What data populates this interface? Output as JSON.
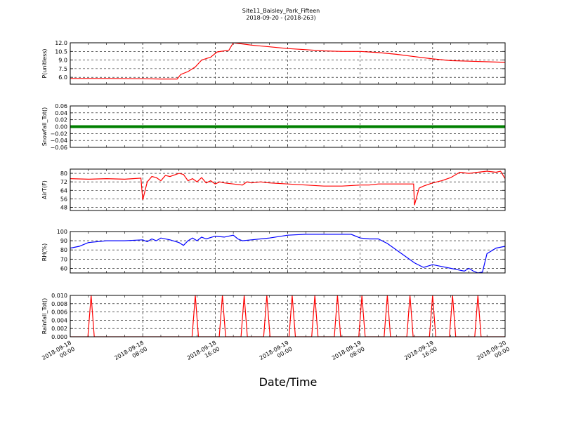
{
  "figure": {
    "title_line1": "Site11_Baisley_Park_Fifteen",
    "title_line2": "2018-09-20 - (2018-263)",
    "xlabel": "Date/Time"
  },
  "chart_data": {
    "type": "line",
    "x_axis": {
      "start": "2018-09-18 00:00",
      "end": "2018-09-20 00:00",
      "tick_labels": [
        [
          "2018-09-18",
          "00:00"
        ],
        [
          "2018-09-18",
          "08:00"
        ],
        [
          "2018-09-18",
          "16:00"
        ],
        [
          "2018-09-19",
          "00:00"
        ],
        [
          "2018-09-19",
          "08:00"
        ],
        [
          "2018-09-19",
          "16:00"
        ],
        [
          "2018-09-20",
          "00:00"
        ]
      ]
    },
    "grid": true,
    "panels": [
      {
        "ylabel": "P(unitless)",
        "ylim": [
          4.8,
          12.0
        ],
        "yticks": [
          "6.0",
          "7.5",
          "9.0",
          "10.5",
          "12.0"
        ],
        "color": "#ff0000",
        "style": "line",
        "points": [
          [
            0,
            5.8
          ],
          [
            4,
            5.8
          ],
          [
            8,
            5.75
          ],
          [
            10,
            5.7
          ],
          [
            11.8,
            5.7
          ],
          [
            12.2,
            6.5
          ],
          [
            13,
            7.0
          ],
          [
            13.8,
            7.8
          ],
          [
            14.5,
            9.0
          ],
          [
            15.5,
            9.5
          ],
          [
            16.2,
            10.4
          ],
          [
            17,
            10.6
          ],
          [
            17.5,
            10.7
          ],
          [
            18,
            12.0
          ],
          [
            19,
            11.8
          ],
          [
            20,
            11.6
          ],
          [
            22,
            11.3
          ],
          [
            24,
            11.0
          ],
          [
            26,
            10.8
          ],
          [
            28,
            10.6
          ],
          [
            30,
            10.5
          ],
          [
            32,
            10.5
          ],
          [
            34,
            10.3
          ],
          [
            36,
            10.0
          ],
          [
            38,
            9.6
          ],
          [
            40,
            9.2
          ],
          [
            42,
            8.9
          ],
          [
            44,
            8.8
          ],
          [
            46,
            8.7
          ],
          [
            48,
            8.6
          ]
        ]
      },
      {
        "ylabel": "Snowfall_Tot()",
        "ylim": [
          -0.06,
          0.06
        ],
        "yticks": [
          "−0.06",
          "−0.04",
          "−0.02",
          "0.00",
          "0.02",
          "0.04",
          "0.06"
        ],
        "color": "#008000",
        "style": "markers",
        "points": [
          [
            0,
            0
          ],
          [
            48,
            0
          ]
        ]
      },
      {
        "ylabel": "AirT(F)",
        "ylim": [
          45,
          84
        ],
        "yticks": [
          "48",
          "56",
          "64",
          "72",
          "80"
        ],
        "color": "#ff0000",
        "style": "line",
        "points": [
          [
            0,
            75
          ],
          [
            2,
            74.5
          ],
          [
            4,
            75
          ],
          [
            6,
            74.5
          ],
          [
            7.8,
            75.5
          ],
          [
            8,
            55
          ],
          [
            8.5,
            72
          ],
          [
            9,
            77
          ],
          [
            9.5,
            76
          ],
          [
            10,
            73
          ],
          [
            10.5,
            78
          ],
          [
            11,
            77
          ],
          [
            12,
            80
          ],
          [
            12.5,
            79
          ],
          [
            13,
            73
          ],
          [
            13.5,
            75
          ],
          [
            14,
            72
          ],
          [
            14.5,
            76
          ],
          [
            15,
            71
          ],
          [
            15.5,
            73
          ],
          [
            16,
            70
          ],
          [
            16.5,
            72
          ],
          [
            17,
            71
          ],
          [
            18,
            70
          ],
          [
            19,
            69
          ],
          [
            19.5,
            72
          ],
          [
            20,
            71
          ],
          [
            21,
            72
          ],
          [
            22,
            71
          ],
          [
            24,
            70
          ],
          [
            26,
            69
          ],
          [
            28,
            68
          ],
          [
            30,
            68
          ],
          [
            32,
            69
          ],
          [
            33,
            69
          ],
          [
            34,
            70
          ],
          [
            37.9,
            70
          ],
          [
            38,
            50
          ],
          [
            38.5,
            66
          ],
          [
            39,
            68
          ],
          [
            40,
            71
          ],
          [
            41,
            73
          ],
          [
            42,
            76
          ],
          [
            43,
            81
          ],
          [
            44,
            80
          ],
          [
            45,
            81
          ],
          [
            46,
            82
          ],
          [
            47,
            81
          ],
          [
            47.5,
            82
          ],
          [
            48,
            75
          ]
        ]
      },
      {
        "ylabel": "RH(%)",
        "ylim": [
          55,
          100
        ],
        "yticks": [
          "60",
          "70",
          "80",
          "90",
          "100"
        ],
        "color": "#0000ff",
        "style": "line",
        "points": [
          [
            0,
            82
          ],
          [
            1,
            84
          ],
          [
            2,
            88
          ],
          [
            4,
            90
          ],
          [
            6,
            90
          ],
          [
            8,
            91
          ],
          [
            8.5,
            89
          ],
          [
            9,
            92
          ],
          [
            9.5,
            90
          ],
          [
            10,
            93
          ],
          [
            11,
            91
          ],
          [
            12,
            88
          ],
          [
            12.5,
            85
          ],
          [
            13,
            90
          ],
          [
            13.5,
            93
          ],
          [
            14,
            90
          ],
          [
            14.5,
            94
          ],
          [
            15,
            92
          ],
          [
            16,
            95
          ],
          [
            17,
            94
          ],
          [
            18,
            96
          ],
          [
            18.5,
            92
          ],
          [
            19,
            90
          ],
          [
            20,
            91
          ],
          [
            22,
            93
          ],
          [
            24,
            96
          ],
          [
            26,
            97
          ],
          [
            28,
            97
          ],
          [
            30,
            97
          ],
          [
            31,
            97
          ],
          [
            32,
            93
          ],
          [
            33,
            92
          ],
          [
            34,
            92
          ],
          [
            35,
            87
          ],
          [
            36,
            80
          ],
          [
            37,
            73
          ],
          [
            38,
            66
          ],
          [
            39,
            61
          ],
          [
            40,
            64
          ],
          [
            41,
            62
          ],
          [
            42,
            60
          ],
          [
            43,
            58
          ],
          [
            43.5,
            57
          ],
          [
            44,
            60
          ],
          [
            44.5,
            57
          ],
          [
            45,
            55
          ],
          [
            45.5,
            56
          ],
          [
            46,
            76
          ],
          [
            47,
            82
          ],
          [
            48,
            84
          ],
          [
            48,
            82
          ]
        ]
      },
      {
        "ylabel": "Rainfall_Tot()",
        "ylim": [
          0.0,
          0.01
        ],
        "yticks": [
          "0.000",
          "0.002",
          "0.004",
          "0.006",
          "0.008",
          "0.010"
        ],
        "color": "#ff0000",
        "style": "line",
        "spikes_at_hours": [
          2.3,
          13.8,
          16.8,
          19.2,
          21.7,
          24.5,
          27.0,
          29.5,
          32.2,
          35.0,
          37.5,
          40.0,
          42.2,
          45.0
        ]
      }
    ]
  }
}
